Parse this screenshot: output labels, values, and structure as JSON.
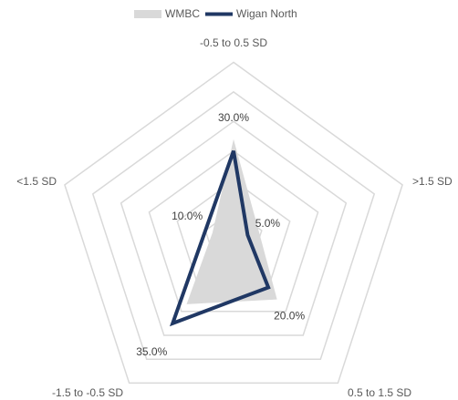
{
  "chart_data": {
    "type": "radar",
    "categories": [
      "-0.5 to 0.5 SD",
      ">1.5 SD",
      "0.5 to 1.5 SD",
      "-1.5 to -0.5 SD",
      "<1.5 SD"
    ],
    "series": [
      {
        "name": "WMBC",
        "color": "#d9d9d9",
        "fill": true,
        "values": [
          34,
          9,
          25,
          27,
          7.5
        ]
      },
      {
        "name": "Wigan North",
        "color": "#203864",
        "fill": false,
        "values": [
          30,
          5,
          20,
          35,
          10
        ],
        "value_labels": [
          "30.0%",
          "5.0%",
          "20.0%",
          "35.0%",
          "10.0%"
        ]
      }
    ],
    "ylim": [
      0,
      60
    ],
    "yticks": [
      10,
      20,
      30,
      40,
      50,
      60
    ],
    "grid": true,
    "legend": "top"
  }
}
